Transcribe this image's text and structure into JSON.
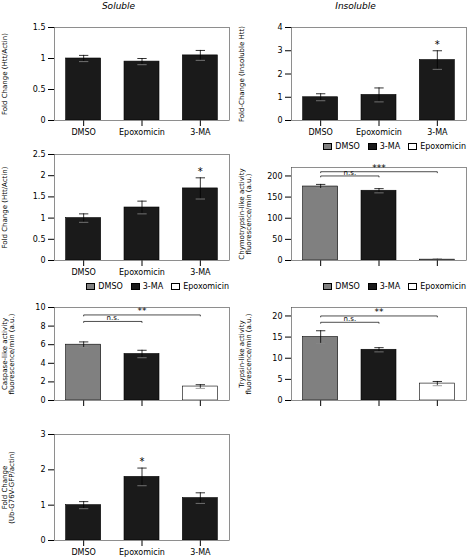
{
  "chart_data": [
    {
      "type": "bar",
      "title": "Soluble",
      "categories": [
        "DMSO",
        "Epoxomicin",
        "3-MA"
      ],
      "values": [
        1.0,
        0.95,
        1.05
      ],
      "errors": [
        0.05,
        0.05,
        0.08
      ],
      "color": "#1a1a1a",
      "ylabel": "Fold Change (Htt/Actin)",
      "ylim": [
        0,
        1.5
      ],
      "yticks": [
        0,
        0.5,
        1,
        1.5
      ]
    },
    {
      "type": "bar",
      "title": "Insoluble",
      "categories": [
        "DMSO",
        "Epoxomicin",
        "3-MA"
      ],
      "values": [
        1.0,
        1.1,
        2.6
      ],
      "errors": [
        0.15,
        0.3,
        0.4
      ],
      "color": "#1a1a1a",
      "ylabel": "Fold-Change (Insoluble Htt)",
      "ylim": [
        0,
        4.0
      ],
      "yticks": [
        0,
        1,
        2,
        3,
        4
      ],
      "annotations": [
        {
          "text": "*",
          "category": "3-MA"
        }
      ]
    },
    {
      "type": "bar",
      "categories": [
        "DMSO",
        "Epoxomicin",
        "3-MA"
      ],
      "values": [
        1.0,
        1.25,
        1.7
      ],
      "errors": [
        0.1,
        0.15,
        0.25
      ],
      "color": "#1a1a1a",
      "ylabel": "Fold Change (Htt/Actin)",
      "ylim": [
        0,
        2.5
      ],
      "yticks": [
        0,
        0.5,
        1,
        1.5,
        2,
        2.5
      ],
      "annotations": [
        {
          "text": "*",
          "category": "3-MA"
        }
      ]
    },
    {
      "type": "bar",
      "categories": [
        "DMSO",
        "3-MA",
        "Epoxomicin"
      ],
      "values": [
        175,
        165,
        2
      ],
      "errors": [
        5,
        5,
        1
      ],
      "colors": [
        "#808080",
        "#1a1a1a",
        "#ffffff"
      ],
      "ylabel": "Chymotrypsin-like activity\nfluorescence/min (a.u.)",
      "ylim": [
        0,
        220
      ],
      "yticks": [
        0,
        50,
        100,
        150,
        200
      ],
      "legend": "upper right",
      "tick_labels": "y",
      "annotations": [
        {
          "text": "***",
          "from": "DMSO",
          "to": "Epoxomicin",
          "y": 210
        },
        {
          "text": "n.s.",
          "from": "DMSO",
          "to": "3-MA",
          "y": 200
        }
      ]
    },
    {
      "type": "bar",
      "categories": [
        "DMSO",
        "3-MA",
        "Epoxomicin"
      ],
      "values": [
        6.0,
        5.0,
        1.5
      ],
      "errors": [
        0.3,
        0.4,
        0.2
      ],
      "colors": [
        "#808080",
        "#1a1a1a",
        "#ffffff"
      ],
      "ylabel": "Caspase-like activity\nfluorescence/min (a.u.)",
      "ylim": [
        0,
        10
      ],
      "yticks": [
        0,
        2,
        4,
        6,
        8,
        10
      ],
      "legend": "upper right",
      "tick_labels": "y",
      "annotations": [
        {
          "text": "**",
          "from": "DMSO",
          "to": "Epoxomicin",
          "y": 9.2
        },
        {
          "text": "n.s.",
          "from": "DMSO",
          "to": "3-MA",
          "y": 8.5
        }
      ]
    },
    {
      "type": "bar",
      "categories": [
        "DMSO",
        "3-MA",
        "Epoxomicin"
      ],
      "values": [
        15.0,
        12.0,
        4.0
      ],
      "errors": [
        1.5,
        0.5,
        0.5
      ],
      "colors": [
        "#808080",
        "#1a1a1a",
        "#ffffff"
      ],
      "ylabel": "Trypsin-like activity\nfluorescence/min (a.u.)",
      "ylim": [
        0,
        22
      ],
      "yticks": [
        0,
        5,
        10,
        15,
        20
      ],
      "legend": "upper right",
      "tick_labels": "y",
      "annotations": [
        {
          "text": "**",
          "from": "DMSO",
          "to": "Epoxomicin",
          "y": 20
        },
        {
          "text": "n.s.",
          "from": "DMSO",
          "to": "3-MA",
          "y": 18.5
        }
      ]
    },
    {
      "type": "bar",
      "categories": [
        "DMSO",
        "Epoxomicin",
        "3-MA"
      ],
      "values": [
        1.0,
        1.8,
        1.2
      ],
      "errors": [
        0.1,
        0.25,
        0.15
      ],
      "color": "#1a1a1a",
      "ylabel": "Fold Change\n(Ub-G76V-GFP/actin)",
      "ylim": [
        0,
        3.0
      ],
      "yticks": [
        0,
        1,
        2,
        3
      ],
      "annotations": [
        {
          "text": "*",
          "category": "Epoxomicin"
        }
      ]
    }
  ]
}
